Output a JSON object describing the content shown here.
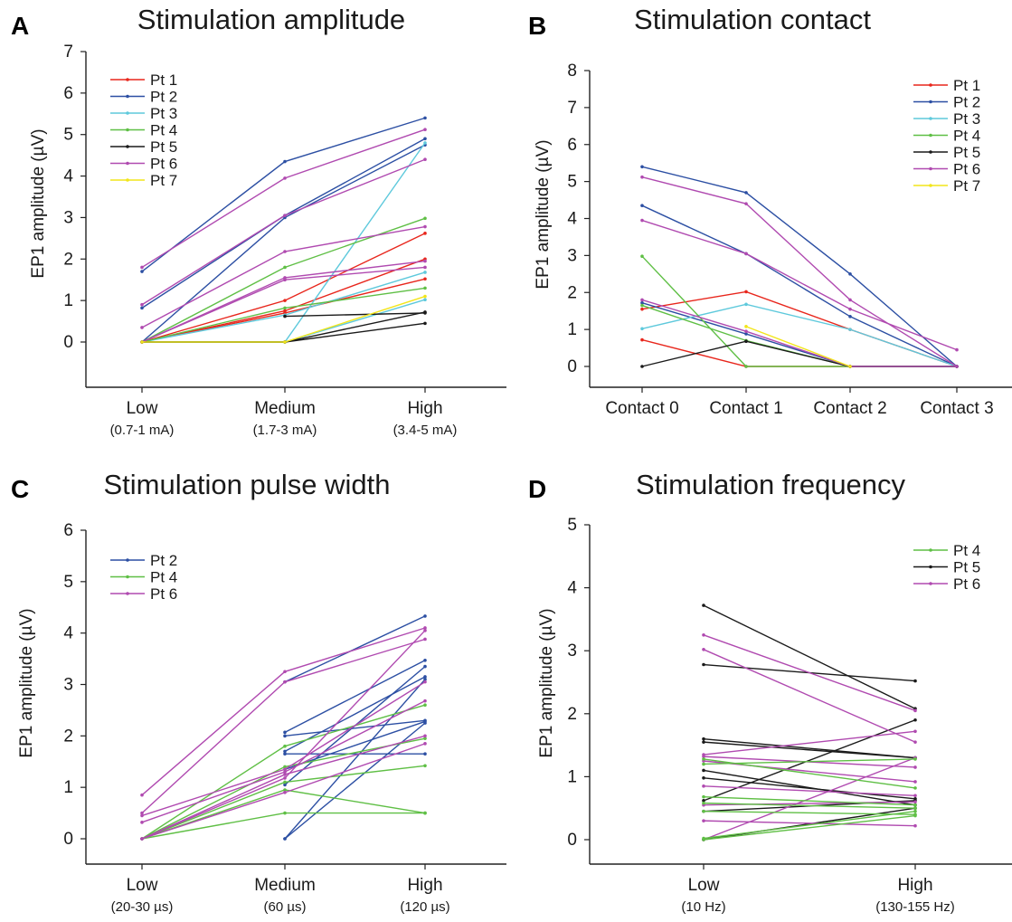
{
  "colors": {
    "Pt 1": "#e8261c",
    "Pt 2": "#2c4fa3",
    "Pt 3": "#5ec9dc",
    "Pt 4": "#5fbf45",
    "Pt 5": "#1a1a1a",
    "Pt 6": "#b04ab0",
    "Pt 7": "#f2e51a"
  },
  "chart_data": [
    {
      "id": "A",
      "panel_label": "A",
      "title": "Stimulation amplitude",
      "type": "line",
      "ylabel": "EP1 amplitude (µV)",
      "ylim": [
        0,
        7
      ],
      "yticks": [
        0,
        1,
        2,
        3,
        4,
        5,
        6,
        7
      ],
      "categories": [
        "Low",
        "Medium",
        "High"
      ],
      "category_sublabels": [
        "(0.7-1 mA)",
        "(1.7-3 mA)",
        "(3.4-5 mA)"
      ],
      "legend": [
        "Pt 1",
        "Pt 2",
        "Pt 3",
        "Pt 4",
        "Pt 5",
        "Pt 6",
        "Pt 7"
      ],
      "legend_position": "top-left",
      "grid": false,
      "series": [
        {
          "patient": "Pt 1",
          "values": [
            0,
            1.0,
            2.62
          ]
        },
        {
          "patient": "Pt 1",
          "values": [
            0,
            0.75,
            2.0
          ]
        },
        {
          "patient": "Pt 1",
          "values": [
            0,
            0.7,
            1.52
          ]
        },
        {
          "patient": "Pt 2",
          "values": [
            1.7,
            4.35,
            5.4
          ]
        },
        {
          "patient": "Pt 2",
          "values": [
            0.82,
            3.05,
            4.9
          ]
        },
        {
          "patient": "Pt 2",
          "values": [
            0,
            3.0,
            4.75
          ]
        },
        {
          "patient": "Pt 3",
          "values": [
            0,
            0,
            4.8
          ]
        },
        {
          "patient": "Pt 3",
          "values": [
            0,
            0.65,
            1.68
          ]
        },
        {
          "patient": "Pt 3",
          "values": [
            0,
            0,
            1.02
          ]
        },
        {
          "patient": "Pt 4",
          "values": [
            0,
            1.8,
            2.98
          ]
        },
        {
          "patient": "Pt 4",
          "values": [
            0,
            0.82,
            1.3
          ]
        },
        {
          "patient": "Pt 5",
          "values": [
            null,
            0.62,
            0.7
          ]
        },
        {
          "patient": "Pt 5",
          "values": [
            0,
            0,
            0.72
          ]
        },
        {
          "patient": "Pt 5",
          "values": [
            0,
            0,
            0.45
          ]
        },
        {
          "patient": "Pt 6",
          "values": [
            1.8,
            3.95,
            5.12
          ]
        },
        {
          "patient": "Pt 6",
          "values": [
            0.9,
            3.05,
            4.4
          ]
        },
        {
          "patient": "Pt 6",
          "values": [
            0.35,
            2.18,
            2.78
          ]
        },
        {
          "patient": "Pt 6",
          "values": [
            0,
            1.55,
            1.95
          ]
        },
        {
          "patient": "Pt 6",
          "values": [
            0,
            1.5,
            1.8
          ]
        },
        {
          "patient": "Pt 7",
          "values": [
            0,
            0,
            1.1
          ]
        }
      ]
    },
    {
      "id": "B",
      "panel_label": "B",
      "title": "Stimulation contact",
      "type": "line",
      "ylabel": "EP1 amplitude (µV)",
      "ylim": [
        0,
        8
      ],
      "yticks": [
        0,
        1,
        2,
        3,
        4,
        5,
        6,
        7,
        8
      ],
      "categories": [
        "Contact 0",
        "Contact 1",
        "Contact 2",
        "Contact 3"
      ],
      "category_sublabels": [
        "",
        "",
        "",
        ""
      ],
      "legend": [
        "Pt 1",
        "Pt 2",
        "Pt 3",
        "Pt 4",
        "Pt 5",
        "Pt 6",
        "Pt 7"
      ],
      "legend_position": "top-right",
      "grid": false,
      "series": [
        {
          "patient": "Pt 1",
          "values": [
            1.55,
            2.02,
            1.0,
            0
          ]
        },
        {
          "patient": "Pt 1",
          "values": [
            0.72,
            0,
            0,
            0
          ]
        },
        {
          "patient": "Pt 2",
          "values": [
            5.4,
            4.7,
            2.5,
            0
          ]
        },
        {
          "patient": "Pt 2",
          "values": [
            4.35,
            3.05,
            1.35,
            0
          ]
        },
        {
          "patient": "Pt 2",
          "values": [
            1.72,
            0.88,
            0,
            0
          ]
        },
        {
          "patient": "Pt 3",
          "values": [
            1.02,
            1.68,
            1.0,
            0
          ]
        },
        {
          "patient": "Pt 4",
          "values": [
            2.98,
            0,
            0,
            0
          ]
        },
        {
          "patient": "Pt 4",
          "values": [
            1.65,
            0.7,
            0,
            0
          ]
        },
        {
          "patient": "Pt 5",
          "values": [
            0,
            0.68,
            0,
            0
          ]
        },
        {
          "patient": "Pt 6",
          "values": [
            5.12,
            4.4,
            1.8,
            0
          ]
        },
        {
          "patient": "Pt 6",
          "values": [
            3.95,
            3.05,
            1.55,
            0.45
          ]
        },
        {
          "patient": "Pt 6",
          "values": [
            1.8,
            0.95,
            0,
            0
          ]
        },
        {
          "patient": "Pt 7",
          "values": [
            null,
            1.08,
            0,
            null
          ]
        }
      ]
    },
    {
      "id": "C",
      "panel_label": "C",
      "title": "Stimulation pulse width",
      "type": "line",
      "ylabel": "EP1 amplitude (µV)",
      "ylim": [
        0,
        6
      ],
      "yticks": [
        0,
        1,
        2,
        3,
        4,
        5,
        6
      ],
      "categories": [
        "Low",
        "Medium",
        "High"
      ],
      "category_sublabels": [
        "(20-30 µs)",
        "(60 µs)",
        "(120 µs)"
      ],
      "legend": [
        "Pt 2",
        "Pt 4",
        "Pt 6"
      ],
      "legend_position": "top-left",
      "grid": false,
      "series": [
        {
          "patient": "Pt 2",
          "values": [
            null,
            3.05,
            4.33
          ]
        },
        {
          "patient": "Pt 2",
          "values": [
            null,
            2.07,
            3.47
          ]
        },
        {
          "patient": "Pt 2",
          "values": [
            null,
            2.0,
            2.3
          ]
        },
        {
          "patient": "Pt 2",
          "values": [
            null,
            1.7,
            3.15
          ]
        },
        {
          "patient": "Pt 2",
          "values": [
            null,
            1.65,
            1.65
          ]
        },
        {
          "patient": "Pt 2",
          "values": [
            null,
            1.35,
            2.28
          ]
        },
        {
          "patient": "Pt 2",
          "values": [
            null,
            1.05,
            3.35
          ]
        },
        {
          "patient": "Pt 2",
          "values": [
            null,
            0,
            3.1
          ]
        },
        {
          "patient": "Pt 2",
          "values": [
            null,
            0,
            2.25
          ]
        },
        {
          "patient": "Pt 4",
          "values": [
            0,
            1.8,
            2.6
          ]
        },
        {
          "patient": "Pt 4",
          "values": [
            0,
            1.4,
            1.95
          ]
        },
        {
          "patient": "Pt 4",
          "values": [
            0,
            1.1,
            1.42
          ]
        },
        {
          "patient": "Pt 4",
          "values": [
            0,
            0.95,
            0.5
          ]
        },
        {
          "patient": "Pt 4",
          "values": [
            0,
            0.5,
            0.5
          ]
        },
        {
          "patient": "Pt 6",
          "values": [
            0.85,
            3.25,
            4.1
          ]
        },
        {
          "patient": "Pt 6",
          "values": [
            0.5,
            3.05,
            3.88
          ]
        },
        {
          "patient": "Pt 6",
          "values": [
            0.45,
            1.35,
            3.05
          ]
        },
        {
          "patient": "Pt 6",
          "values": [
            0.32,
            1.3,
            2.68
          ]
        },
        {
          "patient": "Pt 6",
          "values": [
            0,
            1.18,
            4.05
          ]
        },
        {
          "patient": "Pt 6",
          "values": [
            0,
            1.25,
            2.0
          ]
        },
        {
          "patient": "Pt 6",
          "values": [
            0,
            0.9,
            1.85
          ]
        }
      ]
    },
    {
      "id": "D",
      "panel_label": "D",
      "title": "Stimulation frequency",
      "type": "line",
      "ylabel": "EP1 amplitude (µV)",
      "ylim": [
        0,
        5
      ],
      "yticks": [
        0,
        1,
        2,
        3,
        4,
        5
      ],
      "categories": [
        "Low",
        "High"
      ],
      "category_sublabels": [
        "(10 Hz)",
        "(130-155 Hz)"
      ],
      "legend": [
        "Pt 4",
        "Pt 5",
        "Pt 6"
      ],
      "legend_position": "top-right",
      "grid": false,
      "series": [
        {
          "patient": "Pt 5",
          "values": [
            3.72,
            2.08
          ]
        },
        {
          "patient": "Pt 5",
          "values": [
            2.78,
            2.52
          ]
        },
        {
          "patient": "Pt 5",
          "values": [
            1.6,
            1.3
          ]
        },
        {
          "patient": "Pt 5",
          "values": [
            1.55,
            1.3
          ]
        },
        {
          "patient": "Pt 5",
          "values": [
            1.1,
            0.55
          ]
        },
        {
          "patient": "Pt 5",
          "values": [
            0.98,
            0.65
          ]
        },
        {
          "patient": "Pt 5",
          "values": [
            0.62,
            1.9
          ]
        },
        {
          "patient": "Pt 5",
          "values": [
            0.45,
            0.62
          ]
        },
        {
          "patient": "Pt 5",
          "values": [
            0,
            0.5
          ]
        },
        {
          "patient": "Pt 6",
          "values": [
            3.25,
            2.05
          ]
        },
        {
          "patient": "Pt 6",
          "values": [
            3.02,
            1.55
          ]
        },
        {
          "patient": "Pt 6",
          "values": [
            1.35,
            1.72
          ]
        },
        {
          "patient": "Pt 6",
          "values": [
            1.32,
            1.15
          ]
        },
        {
          "patient": "Pt 6",
          "values": [
            1.25,
            0.92
          ]
        },
        {
          "patient": "Pt 6",
          "values": [
            0.85,
            0.7
          ]
        },
        {
          "patient": "Pt 6",
          "values": [
            0.55,
            0.6
          ]
        },
        {
          "patient": "Pt 6",
          "values": [
            0.3,
            0.22
          ]
        },
        {
          "patient": "Pt 6",
          "values": [
            0,
            1.3
          ]
        },
        {
          "patient": "Pt 4",
          "values": [
            1.28,
            0.82
          ]
        },
        {
          "patient": "Pt 4",
          "values": [
            1.2,
            1.28
          ]
        },
        {
          "patient": "Pt 4",
          "values": [
            0.68,
            0.55
          ]
        },
        {
          "patient": "Pt 4",
          "values": [
            0.58,
            0.5
          ]
        },
        {
          "patient": "Pt 4",
          "values": [
            0.45,
            0.4
          ]
        },
        {
          "patient": "Pt 4",
          "values": [
            0.02,
            0.45
          ]
        },
        {
          "patient": "Pt 4",
          "values": [
            0.0,
            0.38
          ]
        }
      ]
    }
  ]
}
